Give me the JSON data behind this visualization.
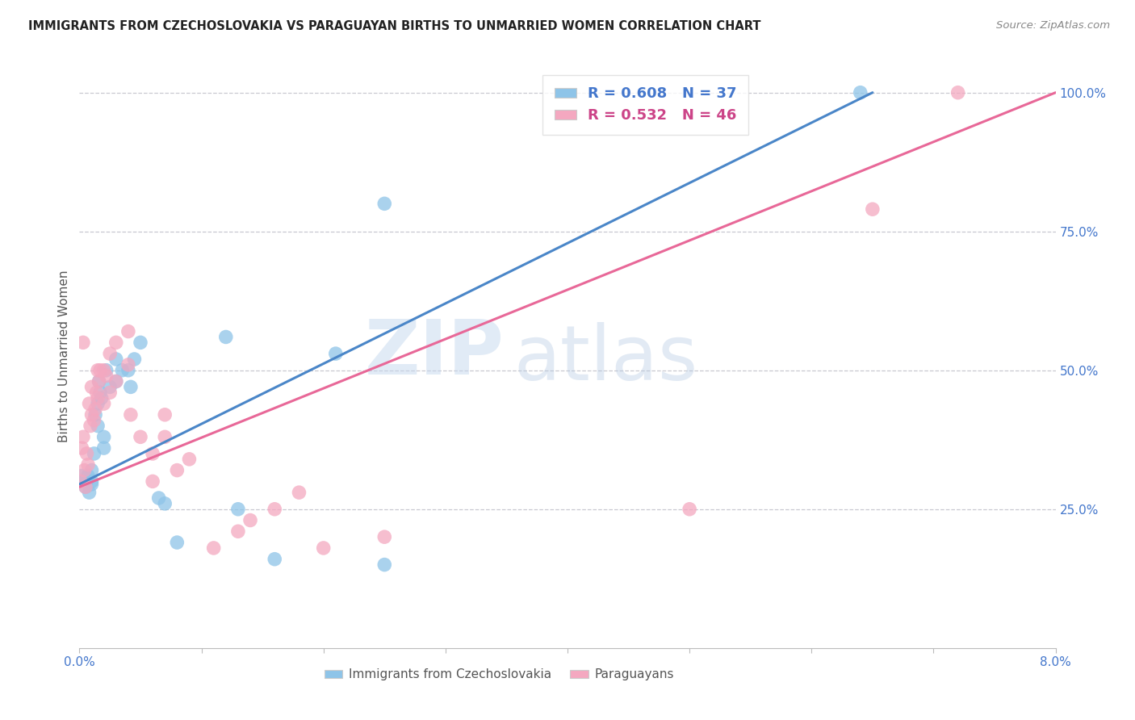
{
  "title": "IMMIGRANTS FROM CZECHOSLOVAKIA VS PARAGUAYAN BIRTHS TO UNMARRIED WOMEN CORRELATION CHART",
  "source": "Source: ZipAtlas.com",
  "ylabel": "Births to Unmarried Women",
  "blue_color": "#8ec4e8",
  "pink_color": "#f4a8c0",
  "blue_line_color": "#4a86c8",
  "pink_line_color": "#e86898",
  "legend_text_blue_color": "#4477cc",
  "legend_text_pink_color": "#cc4488",
  "blue_R": 0.608,
  "blue_N": 37,
  "pink_R": 0.532,
  "pink_N": 46,
  "watermark_zip": "ZIP",
  "watermark_atlas": "atlas",
  "legend_bottom_blue": "Immigrants from Czechoslovakia",
  "legend_bottom_pink": "Paraguayans",
  "xmin": 0.0,
  "xmax": 0.08,
  "ymin": 0.0,
  "ymax": 1.05,
  "blue_line_x0": 0.0,
  "blue_line_y0": 0.295,
  "blue_line_x1": 0.065,
  "blue_line_y1": 1.0,
  "pink_line_x0": 0.0,
  "pink_line_y0": 0.29,
  "pink_line_x1": 0.08,
  "pink_line_y1": 1.0,
  "blue_scatter_x": [
    0.0002,
    0.0003,
    0.0005,
    0.0006,
    0.0007,
    0.0008,
    0.001,
    0.001,
    0.001,
    0.0012,
    0.0013,
    0.0015,
    0.0015,
    0.0016,
    0.0017,
    0.0018,
    0.002,
    0.002,
    0.0022,
    0.0025,
    0.003,
    0.003,
    0.0035,
    0.004,
    0.0042,
    0.0045,
    0.005,
    0.0065,
    0.007,
    0.008,
    0.012,
    0.013,
    0.016,
    0.021,
    0.025,
    0.064,
    0.025
  ],
  "blue_scatter_y": [
    0.31,
    0.3,
    0.29,
    0.3,
    0.31,
    0.28,
    0.32,
    0.3,
    0.295,
    0.35,
    0.42,
    0.4,
    0.44,
    0.48,
    0.46,
    0.45,
    0.38,
    0.36,
    0.5,
    0.47,
    0.52,
    0.48,
    0.5,
    0.5,
    0.47,
    0.52,
    0.55,
    0.27,
    0.26,
    0.19,
    0.56,
    0.25,
    0.16,
    0.53,
    0.15,
    1.0,
    0.8
  ],
  "pink_scatter_x": [
    0.0001,
    0.0002,
    0.0003,
    0.0004,
    0.0005,
    0.0006,
    0.0007,
    0.0008,
    0.0009,
    0.001,
    0.001,
    0.0012,
    0.0013,
    0.0014,
    0.0015,
    0.0015,
    0.0016,
    0.0017,
    0.002,
    0.002,
    0.0022,
    0.0025,
    0.0025,
    0.003,
    0.003,
    0.004,
    0.004,
    0.0042,
    0.005,
    0.006,
    0.006,
    0.007,
    0.007,
    0.008,
    0.009,
    0.011,
    0.013,
    0.014,
    0.016,
    0.018,
    0.02,
    0.025,
    0.05,
    0.065,
    0.072,
    0.0003
  ],
  "pink_scatter_y": [
    0.3,
    0.36,
    0.38,
    0.32,
    0.29,
    0.35,
    0.33,
    0.44,
    0.4,
    0.42,
    0.47,
    0.41,
    0.43,
    0.46,
    0.45,
    0.5,
    0.48,
    0.5,
    0.44,
    0.5,
    0.49,
    0.46,
    0.53,
    0.55,
    0.48,
    0.51,
    0.57,
    0.42,
    0.38,
    0.3,
    0.35,
    0.38,
    0.42,
    0.32,
    0.34,
    0.18,
    0.21,
    0.23,
    0.25,
    0.28,
    0.18,
    0.2,
    0.25,
    0.79,
    1.0,
    0.55
  ]
}
